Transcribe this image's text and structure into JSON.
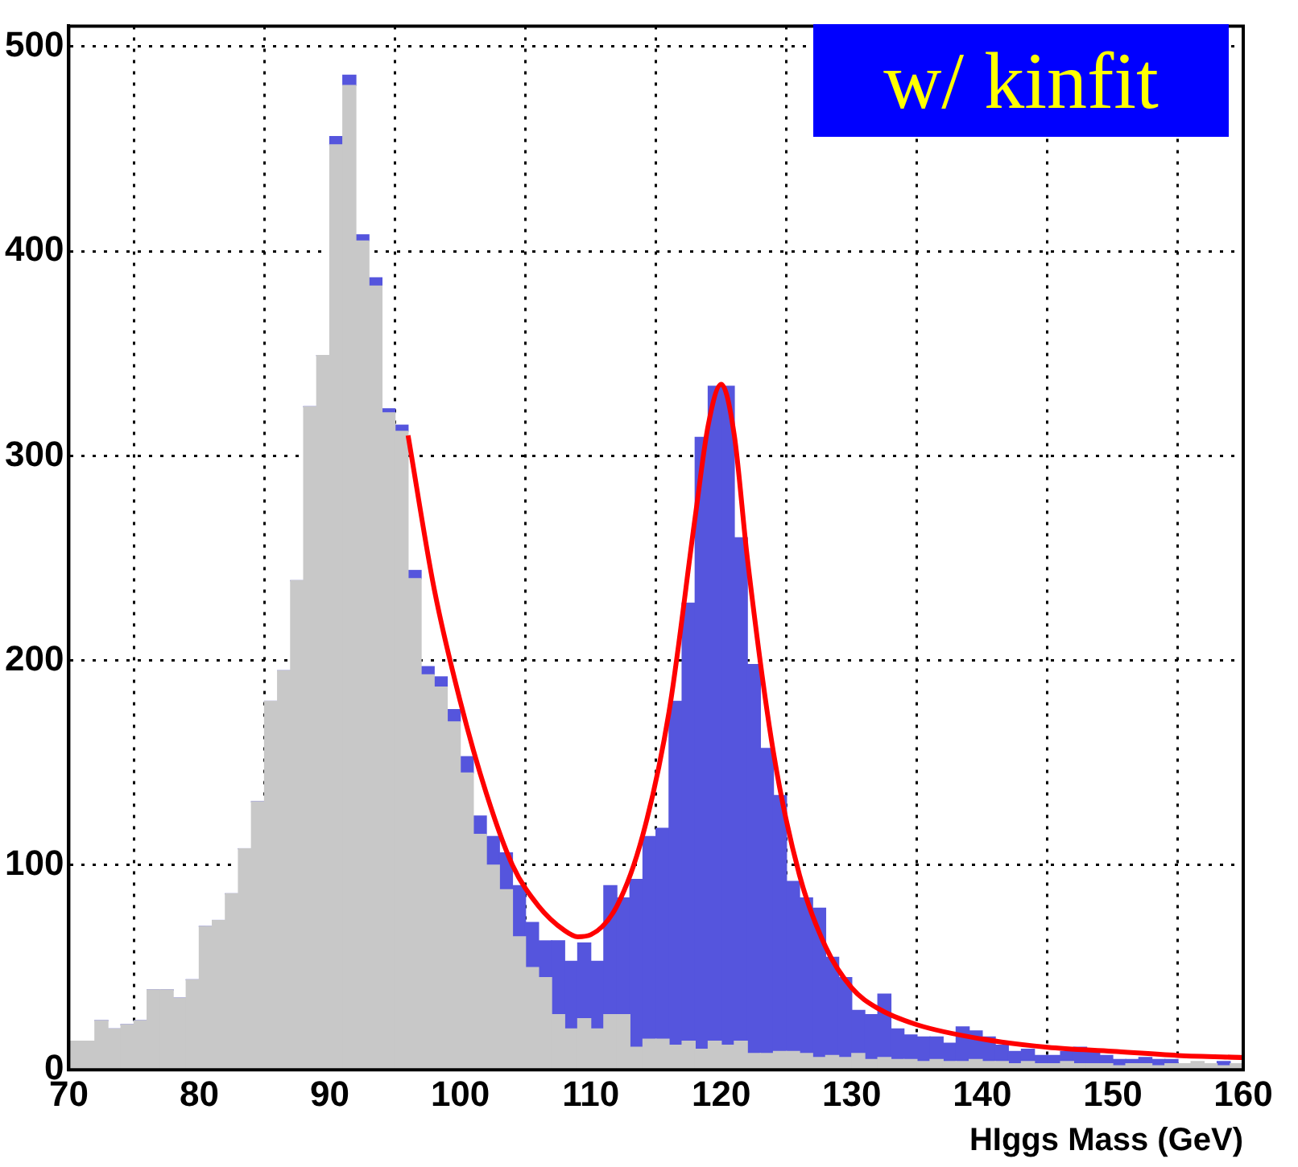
{
  "chart_data": {
    "type": "bar",
    "xlabel": "HIggs Mass (GeV)",
    "annotations": [
      "w/ kinfit"
    ],
    "x": [
      70.5,
      71.5,
      72.5,
      73.5,
      74.5,
      75.5,
      76.5,
      77.5,
      78.5,
      79.5,
      80.5,
      81.5,
      82.5,
      83.5,
      84.5,
      85.5,
      86.5,
      87.5,
      88.5,
      89.5,
      90.5,
      91.5,
      92.5,
      93.5,
      94.5,
      95.5,
      96.5,
      97.5,
      98.5,
      99.5,
      100.5,
      101.5,
      102.5,
      103.5,
      104.5,
      105.5,
      106.5,
      107.5,
      108.5,
      109.5,
      110.5,
      111.5,
      112.5,
      113.5,
      114.5,
      115.5,
      116.5,
      117.5,
      118.5,
      119.5,
      120.5,
      121.5,
      122.5,
      123.5,
      124.5,
      125.5,
      126.5,
      127.5,
      128.5,
      129.5,
      130.5,
      131.5,
      132.5,
      133.5,
      134.5,
      135.5,
      136.5,
      137.5,
      138.5,
      139.5,
      140.5,
      141.5,
      142.5,
      143.5,
      144.5,
      145.5,
      146.5,
      147.5,
      148.5,
      149.5,
      150.5,
      151.5,
      152.5,
      153.5,
      154.5,
      155.5,
      156.5,
      157.5,
      158.5,
      159.5
    ],
    "stacked": true,
    "series": [
      {
        "color": "#c8c8c8",
        "values": [
          14,
          14,
          24,
          20,
          22,
          24,
          39,
          39,
          35,
          44,
          70,
          73,
          86,
          108,
          131,
          180,
          195,
          239,
          324,
          349,
          452,
          481,
          405,
          383,
          321,
          312,
          240,
          193,
          187,
          170,
          145,
          115,
          100,
          88,
          65,
          50,
          45,
          27,
          20,
          25,
          20,
          27,
          27,
          11,
          15,
          15,
          12,
          14,
          10,
          14,
          12,
          14,
          8,
          8,
          9,
          9,
          8,
          6,
          7,
          6,
          8,
          5,
          6,
          5,
          5,
          4,
          5,
          4,
          4,
          5,
          4,
          4,
          3,
          4,
          3,
          3,
          4,
          3,
          3,
          3,
          2,
          3,
          3,
          2,
          3,
          3,
          4,
          3,
          2,
          3
        ]
      },
      {
        "color": "#5555dd",
        "values": [
          0,
          0,
          0,
          0,
          0,
          0,
          0,
          0,
          0,
          0,
          0,
          0,
          0,
          0,
          0,
          0,
          0,
          0,
          0,
          0,
          4,
          5,
          3,
          4,
          2,
          3,
          4,
          4,
          5,
          6,
          8,
          9,
          14,
          18,
          25,
          22,
          18,
          36,
          33,
          37,
          33,
          63,
          57,
          82,
          99,
          103,
          168,
          214,
          299,
          320,
          322,
          246,
          190,
          149,
          125,
          83,
          76,
          73,
          48,
          39,
          21,
          22,
          31,
          15,
          12,
          12,
          11,
          9,
          17,
          14,
          12,
          8,
          6,
          6,
          4,
          4,
          5,
          8,
          6,
          4,
          3,
          2,
          3,
          3,
          2,
          null,
          null,
          null,
          2,
          null
        ]
      },
      {
        "type": "line",
        "color": "#ff0000",
        "x": [
          96,
          98,
          100,
          102,
          104,
          106,
          108,
          109,
          110,
          112,
          114,
          116,
          118,
          119,
          120,
          121,
          122,
          124,
          126,
          128,
          130,
          132,
          135,
          140,
          145,
          150,
          155,
          160
        ],
        "values": [
          310,
          235,
          180,
          135,
          100,
          80,
          68,
          65,
          66,
          80,
          115,
          175,
          270,
          315,
          335,
          310,
          250,
          155,
          95,
          60,
          40,
          30,
          22,
          15,
          11,
          9,
          7,
          6
        ]
      }
    ],
    "xlim": [
      70,
      160
    ],
    "xticks": [
      70,
      80,
      90,
      100,
      110,
      120,
      130,
      140,
      150,
      160
    ],
    "ylim": [
      0,
      510
    ],
    "yticks": [
      0,
      100,
      200,
      300,
      400,
      500
    ],
    "grid": true,
    "legend": false,
    "line_style": "solid",
    "marker": "none"
  }
}
